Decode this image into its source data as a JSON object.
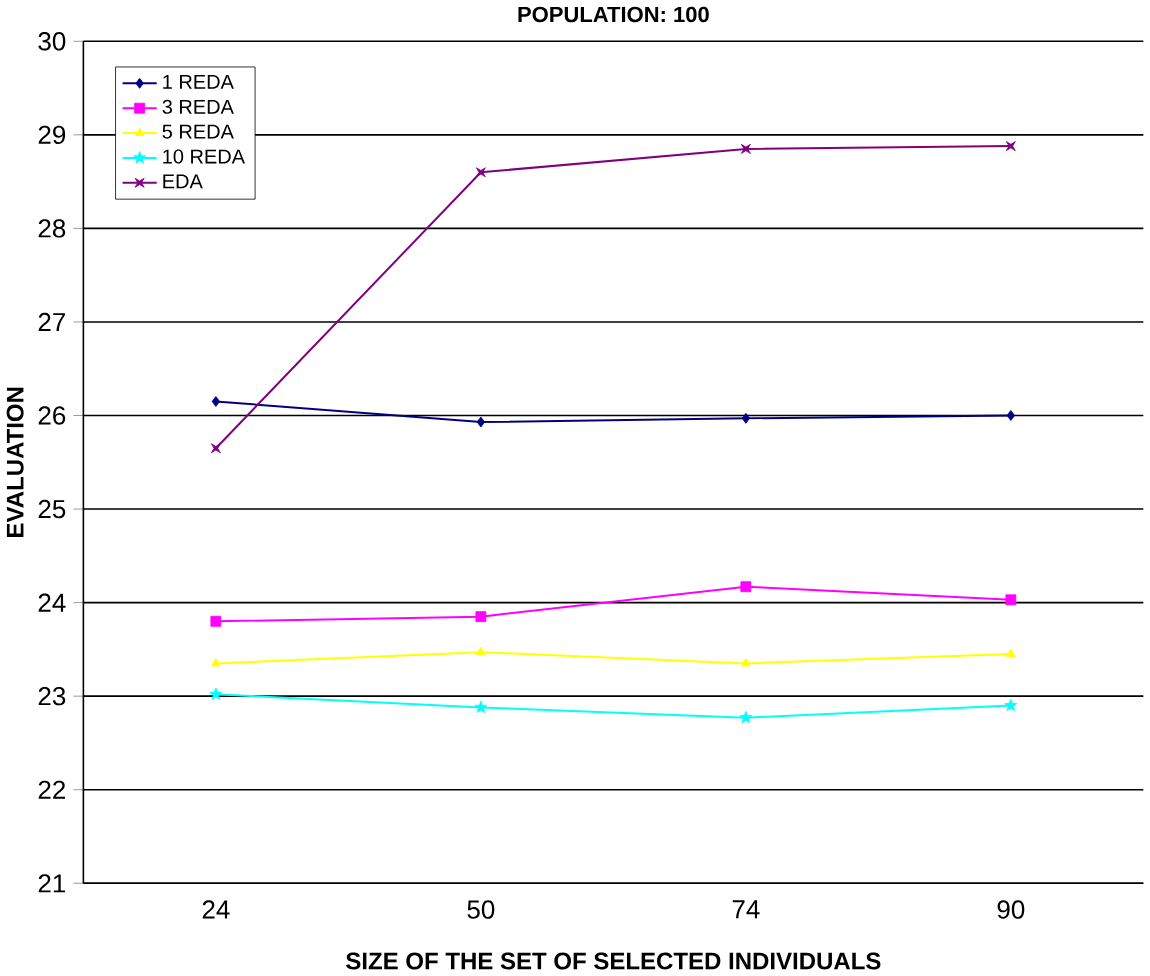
{
  "chart_data": {
    "type": "line",
    "title": "POPULATION: 100",
    "xlabel": "SIZE OF THE SET OF SELECTED INDIVIDUALS",
    "ylabel": "EVALUATION",
    "categories": [
      "24",
      "50",
      "74",
      "90"
    ],
    "series": [
      {
        "name": "1 REDA",
        "color": "#000080",
        "marker": "diamond",
        "values": [
          26.15,
          25.93,
          25.97,
          26.0
        ]
      },
      {
        "name": "3 REDA",
        "color": "#ff00ff",
        "marker": "square",
        "values": [
          23.8,
          23.85,
          24.17,
          24.03
        ]
      },
      {
        "name": "5 REDA",
        "color": "#ffff00",
        "marker": "triangle",
        "values": [
          23.35,
          23.47,
          23.35,
          23.45
        ]
      },
      {
        "name": "10 REDA",
        "color": "#00ffff",
        "marker": "star",
        "values": [
          23.02,
          22.88,
          22.77,
          22.9
        ]
      },
      {
        "name": "EDA",
        "color": "#800080",
        "marker": "cross",
        "values": [
          25.65,
          28.6,
          28.85,
          28.88
        ]
      }
    ],
    "ylim": [
      21,
      30
    ],
    "yticks": [
      21,
      22,
      23,
      24,
      25,
      26,
      27,
      28,
      29,
      30
    ],
    "grid": "y",
    "legend": "top left",
    "line_style": "solid"
  }
}
